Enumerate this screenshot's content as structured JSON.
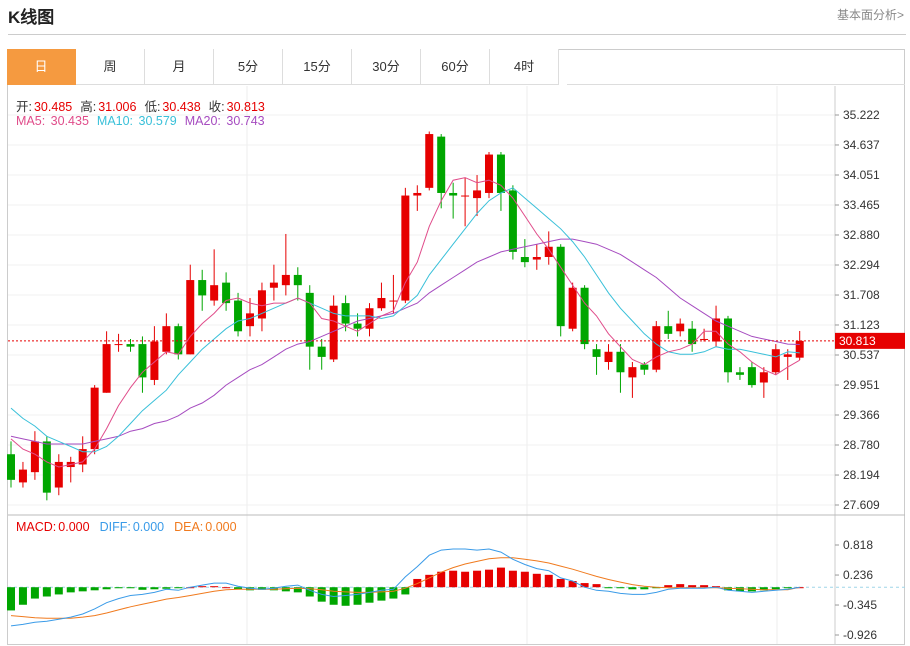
{
  "header": {
    "title": "K线图",
    "more_link": "基本面分析>"
  },
  "tabs": [
    "日",
    "周",
    "月",
    "5分",
    "15分",
    "30分",
    "60分",
    "4时"
  ],
  "active_tab": "日",
  "ohlc_info": {
    "open_label": "开:",
    "open": "30.485",
    "high_label": "高:",
    "high": "31.006",
    "low_label": "低:",
    "low": "30.438",
    "close_label": "收:",
    "close": "30.813"
  },
  "ma_info": {
    "ma5_label": "MA5:",
    "ma5": "30.435",
    "ma10_label": "MA10:",
    "ma10": "30.579",
    "ma20_label": "MA20:",
    "ma20": "30.743"
  },
  "macd_info": {
    "macd_label": "MACD:",
    "macd": "0.000",
    "diff_label": "DIFF:",
    "diff": "0.000",
    "dea_label": "DEA:",
    "dea": "0.000"
  },
  "colors": {
    "up": "#e60000",
    "down": "#00a600",
    "ma5": "#e04c8a",
    "ma10": "#39c0d9",
    "ma20": "#a64cc0",
    "diff": "#3a9be8",
    "dea": "#f07a1e",
    "tab_active": "#f59a40"
  },
  "chart_data": {
    "type": "candlestick",
    "current_price": "30.813",
    "price_ticks": [
      "35.222",
      "34.637",
      "34.051",
      "33.465",
      "32.880",
      "32.294",
      "31.708",
      "31.123",
      "30.537",
      "29.951",
      "29.366",
      "28.780",
      "28.194",
      "27.609"
    ],
    "price_range": [
      27.609,
      35.222
    ],
    "macd_ticks": [
      "0.818",
      "0.236",
      "-0.345",
      "-0.926"
    ],
    "macd_range": [
      -0.926,
      0.818
    ],
    "candles": [
      [
        28.6,
        28.1,
        28.85,
        27.95
      ],
      [
        28.05,
        28.3,
        28.45,
        27.95
      ],
      [
        28.25,
        28.85,
        29.05,
        28.1
      ],
      [
        28.85,
        27.85,
        28.95,
        27.7
      ],
      [
        27.95,
        28.45,
        28.6,
        27.8
      ],
      [
        28.35,
        28.45,
        28.55,
        28.05
      ],
      [
        28.4,
        28.7,
        28.95,
        28.25
      ],
      [
        28.7,
        29.9,
        29.95,
        28.6
      ],
      [
        29.8,
        30.75,
        31.0,
        29.8
      ],
      [
        30.75,
        30.75,
        30.95,
        30.6
      ],
      [
        30.75,
        30.7,
        30.85,
        30.6
      ],
      [
        30.75,
        30.1,
        30.9,
        29.8
      ],
      [
        30.05,
        30.8,
        31.1,
        29.95
      ],
      [
        30.6,
        31.1,
        31.35,
        30.55
      ],
      [
        31.1,
        30.55,
        31.15,
        30.45
      ],
      [
        30.55,
        32.0,
        32.3,
        30.55
      ],
      [
        32.0,
        31.7,
        32.2,
        31.4
      ],
      [
        31.6,
        31.9,
        32.6,
        31.5
      ],
      [
        31.95,
        31.55,
        32.15,
        31.4
      ],
      [
        31.6,
        31.0,
        31.75,
        30.9
      ],
      [
        31.1,
        31.35,
        31.65,
        30.9
      ],
      [
        31.25,
        31.8,
        31.95,
        31.0
      ],
      [
        31.85,
        31.95,
        32.3,
        31.6
      ],
      [
        31.9,
        32.1,
        32.9,
        31.7
      ],
      [
        32.1,
        31.9,
        32.25,
        31.6
      ],
      [
        31.75,
        30.7,
        31.9,
        30.25
      ],
      [
        30.7,
        30.5,
        30.85,
        30.25
      ],
      [
        30.45,
        31.5,
        31.7,
        30.4
      ],
      [
        31.55,
        31.15,
        31.7,
        31.0
      ],
      [
        31.15,
        31.05,
        31.35,
        30.9
      ],
      [
        31.05,
        31.45,
        31.55,
        30.9
      ],
      [
        31.45,
        31.65,
        31.95,
        31.4
      ],
      [
        31.6,
        31.6,
        32.1,
        31.35
      ],
      [
        31.6,
        33.65,
        33.8,
        31.55
      ],
      [
        33.65,
        33.7,
        33.85,
        33.35
      ],
      [
        33.8,
        34.85,
        34.9,
        33.75
      ],
      [
        34.8,
        33.7,
        34.85,
        33.4
      ],
      [
        33.7,
        33.65,
        33.9,
        33.2
      ],
      [
        33.65,
        33.65,
        34.0,
        33.05
      ],
      [
        33.6,
        33.75,
        34.05,
        33.25
      ],
      [
        33.7,
        34.45,
        34.5,
        33.6
      ],
      [
        34.45,
        33.7,
        34.5,
        33.35
      ],
      [
        33.75,
        32.55,
        33.85,
        32.4
      ],
      [
        32.45,
        32.35,
        32.8,
        32.25
      ],
      [
        32.4,
        32.45,
        32.7,
        32.2
      ],
      [
        32.45,
        32.65,
        32.95,
        32.3
      ],
      [
        32.65,
        31.1,
        32.7,
        30.9
      ],
      [
        31.05,
        31.85,
        31.95,
        31.0
      ],
      [
        31.85,
        30.75,
        31.9,
        30.65
      ],
      [
        30.65,
        30.5,
        30.75,
        30.15
      ],
      [
        30.4,
        30.6,
        30.75,
        30.25
      ],
      [
        30.6,
        30.2,
        30.75,
        29.8
      ],
      [
        30.1,
        30.3,
        30.4,
        29.7
      ],
      [
        30.35,
        30.25,
        30.4,
        30.15
      ],
      [
        30.25,
        31.1,
        31.2,
        30.2
      ],
      [
        31.1,
        30.95,
        31.4,
        30.85
      ],
      [
        31.0,
        31.15,
        31.25,
        30.9
      ],
      [
        31.05,
        30.75,
        31.2,
        30.6
      ],
      [
        30.85,
        30.85,
        31.05,
        30.8
      ],
      [
        30.8,
        31.25,
        31.5,
        30.7
      ],
      [
        31.25,
        30.2,
        31.3,
        30.0
      ],
      [
        30.2,
        30.15,
        30.3,
        30.05
      ],
      [
        30.3,
        29.95,
        30.4,
        29.9
      ],
      [
        30.0,
        30.2,
        30.3,
        29.7
      ],
      [
        30.2,
        30.65,
        30.75,
        30.15
      ],
      [
        30.5,
        30.55,
        30.65,
        30.05
      ],
      [
        30.485,
        30.813,
        31.006,
        30.438
      ]
    ],
    "ma5": [
      28.9,
      28.7,
      28.6,
      28.45,
      28.35,
      28.4,
      28.45,
      28.7,
      29.1,
      29.55,
      29.9,
      30.2,
      30.4,
      30.6,
      30.55,
      30.9,
      31.15,
      31.35,
      31.6,
      31.65,
      31.55,
      31.5,
      31.55,
      31.55,
      31.65,
      31.55,
      31.25,
      31.2,
      31.1,
      31.0,
      31.15,
      31.3,
      31.4,
      31.95,
      32.35,
      33.05,
      33.55,
      33.95,
      34.0,
      33.9,
      33.95,
      33.85,
      33.6,
      33.25,
      32.9,
      32.6,
      32.25,
      31.9,
      31.55,
      31.3,
      30.95,
      30.7,
      30.45,
      30.35,
      30.5,
      30.6,
      30.65,
      30.75,
      31.0,
      31.0,
      30.75,
      30.6,
      30.4,
      30.25,
      30.15,
      30.3,
      30.435
    ],
    "ma10": [
      29.5,
      29.3,
      29.15,
      28.95,
      28.85,
      28.75,
      28.65,
      28.65,
      28.75,
      28.95,
      29.2,
      29.45,
      29.65,
      29.85,
      30.15,
      30.4,
      30.65,
      30.85,
      31.05,
      31.2,
      31.25,
      31.35,
      31.45,
      31.55,
      31.65,
      31.55,
      31.45,
      31.35,
      31.3,
      31.3,
      31.3,
      31.25,
      31.3,
      31.5,
      31.7,
      32.1,
      32.4,
      32.7,
      33.0,
      33.3,
      33.55,
      33.7,
      33.8,
      33.6,
      33.4,
      33.2,
      33.0,
      32.75,
      32.45,
      32.1,
      31.75,
      31.45,
      31.2,
      30.95,
      30.75,
      30.6,
      30.55,
      30.55,
      30.6,
      30.7,
      30.65,
      30.65,
      30.6,
      30.55,
      30.5,
      30.6,
      30.579
    ],
    "ma20": [
      28.95,
      28.9,
      28.85,
      28.8,
      28.8,
      28.8,
      28.8,
      28.85,
      28.9,
      28.95,
      29.05,
      29.1,
      29.2,
      29.25,
      29.35,
      29.5,
      29.6,
      29.75,
      29.95,
      30.1,
      30.25,
      30.35,
      30.5,
      30.65,
      30.75,
      30.8,
      30.9,
      31.0,
      31.1,
      31.2,
      31.25,
      31.3,
      31.35,
      31.45,
      31.55,
      31.75,
      31.9,
      32.05,
      32.2,
      32.35,
      32.45,
      32.55,
      32.6,
      32.65,
      32.7,
      32.75,
      32.8,
      32.8,
      32.75,
      32.7,
      32.6,
      32.5,
      32.35,
      32.2,
      32.05,
      31.85,
      31.65,
      31.5,
      31.35,
      31.2,
      31.1,
      31.0,
      30.9,
      30.85,
      30.8,
      30.75,
      30.743
    ],
    "diff": [
      -0.75,
      -0.72,
      -0.68,
      -0.66,
      -0.62,
      -0.58,
      -0.52,
      -0.42,
      -0.3,
      -0.22,
      -0.16,
      -0.14,
      -0.1,
      -0.04,
      -0.06,
      0.0,
      0.04,
      0.08,
      0.08,
      0.02,
      -0.02,
      -0.04,
      -0.02,
      0.02,
      0.04,
      -0.06,
      -0.14,
      -0.18,
      -0.16,
      -0.14,
      -0.1,
      -0.06,
      -0.04,
      0.2,
      0.4,
      0.62,
      0.72,
      0.74,
      0.74,
      0.72,
      0.74,
      0.68,
      0.54,
      0.44,
      0.36,
      0.32,
      0.18,
      0.12,
      0.0,
      -0.06,
      -0.08,
      -0.12,
      -0.14,
      -0.14,
      -0.1,
      -0.04,
      -0.02,
      -0.02,
      -0.02,
      0.0,
      -0.06,
      -0.08,
      -0.1,
      -0.08,
      -0.06,
      -0.04,
      0.0
    ],
    "dea": [
      -0.55,
      -0.57,
      -0.59,
      -0.6,
      -0.6,
      -0.6,
      -0.58,
      -0.55,
      -0.5,
      -0.44,
      -0.38,
      -0.33,
      -0.28,
      -0.23,
      -0.2,
      -0.16,
      -0.12,
      -0.08,
      -0.05,
      -0.04,
      -0.04,
      -0.04,
      -0.04,
      -0.03,
      -0.02,
      -0.03,
      -0.05,
      -0.08,
      -0.09,
      -0.1,
      -0.1,
      -0.09,
      -0.08,
      -0.02,
      0.07,
      0.18,
      0.29,
      0.38,
      0.45,
      0.5,
      0.55,
      0.57,
      0.57,
      0.54,
      0.51,
      0.47,
      0.41,
      0.35,
      0.28,
      0.21,
      0.15,
      0.1,
      0.05,
      0.02,
      0.0,
      -0.01,
      -0.01,
      -0.01,
      -0.01,
      -0.01,
      -0.02,
      -0.03,
      -0.04,
      -0.05,
      -0.05,
      -0.05,
      0.0
    ],
    "macd": [
      -0.45,
      -0.34,
      -0.22,
      -0.18,
      -0.14,
      -0.1,
      -0.08,
      -0.06,
      -0.04,
      -0.02,
      -0.02,
      -0.05,
      -0.04,
      -0.03,
      -0.02,
      0.0,
      0.02,
      0.02,
      0.0,
      -0.04,
      -0.06,
      -0.05,
      -0.06,
      -0.08,
      -0.1,
      -0.18,
      -0.28,
      -0.34,
      -0.36,
      -0.34,
      -0.3,
      -0.26,
      -0.22,
      -0.14,
      0.16,
      0.24,
      0.3,
      0.32,
      0.3,
      0.32,
      0.34,
      0.38,
      0.32,
      0.3,
      0.26,
      0.24,
      0.16,
      0.12,
      0.08,
      0.06,
      -0.02,
      -0.02,
      -0.04,
      -0.04,
      -0.02,
      0.04,
      0.06,
      0.04,
      0.04,
      0.02,
      -0.06,
      -0.08,
      -0.08,
      -0.06,
      -0.04,
      -0.02,
      0.0
    ]
  }
}
